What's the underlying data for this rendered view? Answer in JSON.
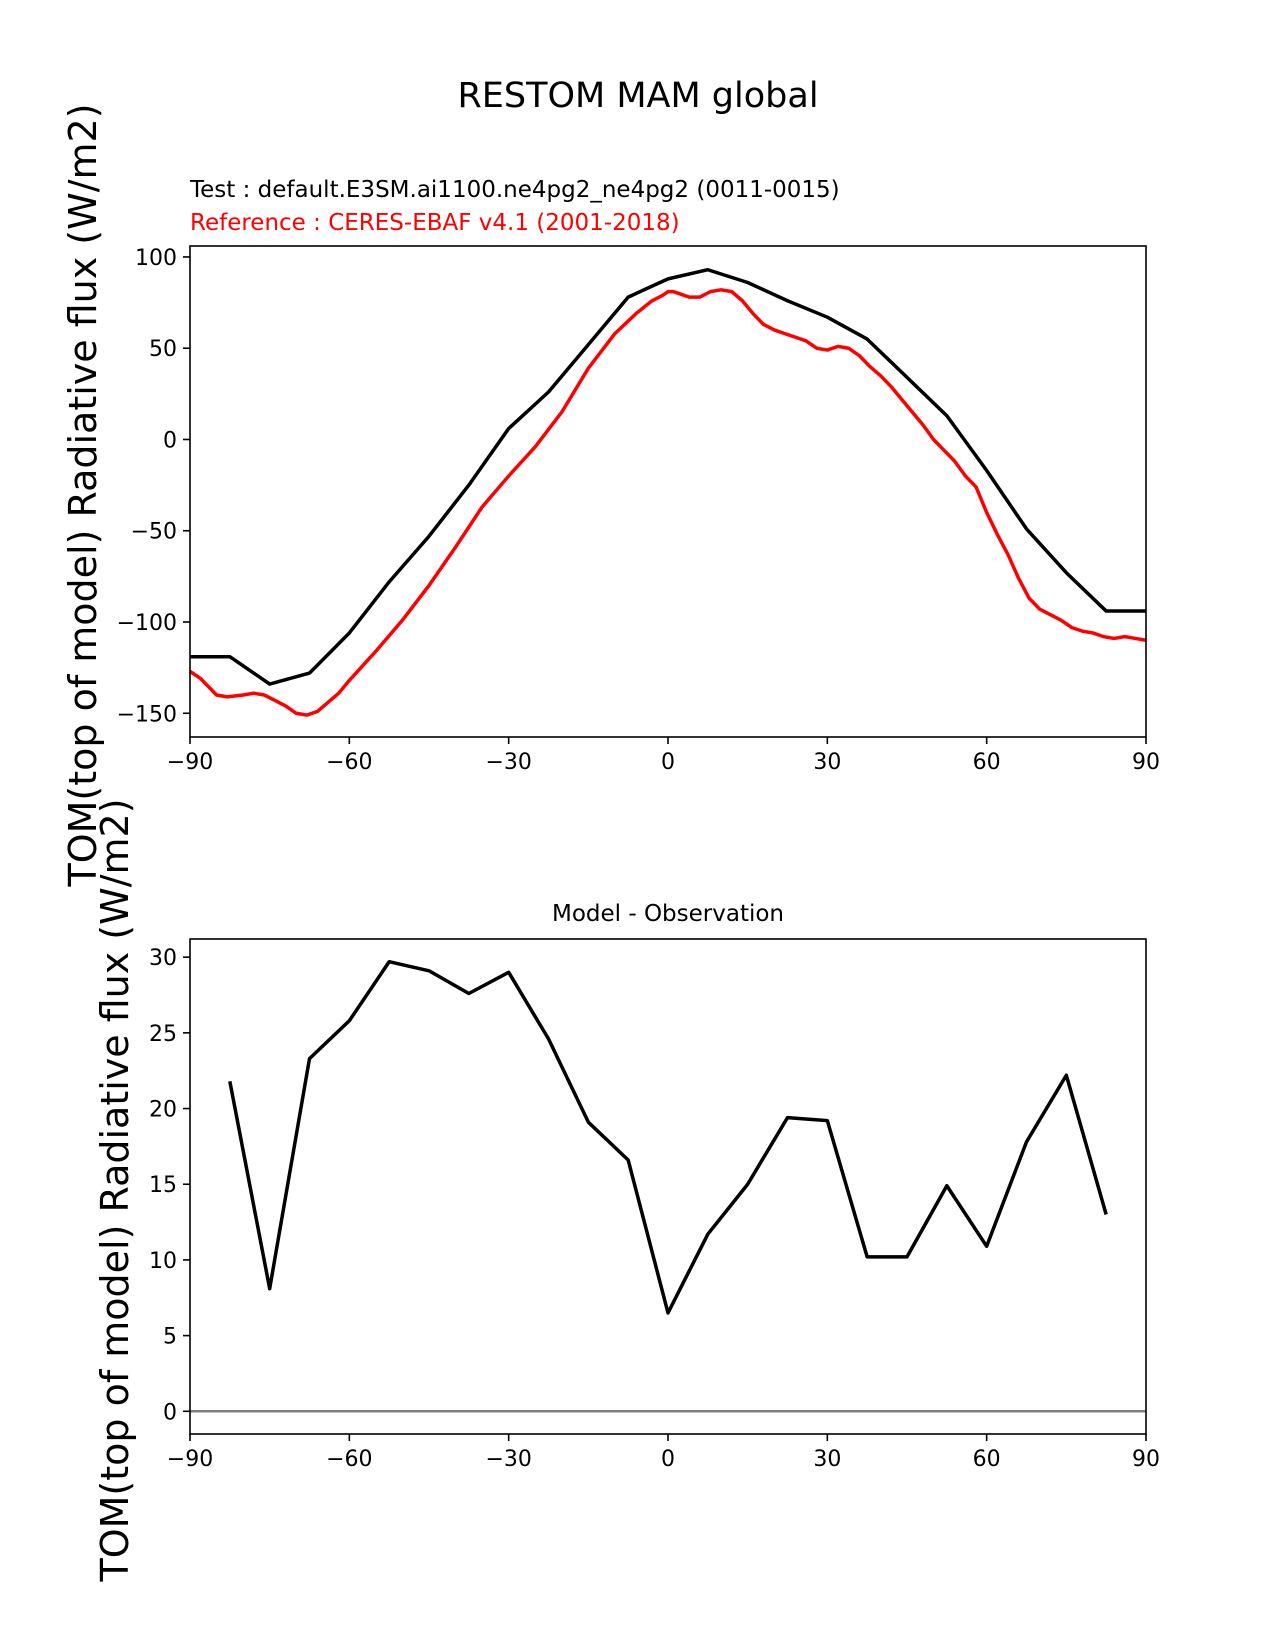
{
  "figure": {
    "title": "RESTOM MAM global",
    "test_label": "Test : default.E3SM.ai1100.ne4pg2_ne4pg2 (0011-0015)",
    "reference_label": "Reference : CERES-EBAF v4.1 (2001-2018)"
  },
  "colors": {
    "test": "#000000",
    "reference": "#ff0000",
    "zero_line": "#808080",
    "axes": "#000000",
    "background": "#ffffff"
  },
  "chart_data": [
    {
      "type": "line",
      "title": "",
      "xlabel": "",
      "ylabel": "TOM(top of model) Radiative flux (W/m2)",
      "xlim": [
        -90,
        90
      ],
      "ylim": [
        -163,
        106
      ],
      "xticks": [
        -90,
        -60,
        -30,
        0,
        30,
        60,
        90
      ],
      "yticks": [
        -150,
        -100,
        -50,
        0,
        50,
        100
      ],
      "grid": false,
      "series": [
        {
          "color_key": "test",
          "x": [
            -90,
            -82.5,
            -75,
            -67.5,
            -60,
            -52.5,
            -45,
            -37.5,
            -30,
            -22.5,
            -15,
            -7.5,
            0,
            7.5,
            15,
            22.5,
            30,
            37.5,
            45,
            52.5,
            60,
            67.5,
            75,
            82.5,
            90
          ],
          "y": [
            -119,
            -119,
            -134,
            -128,
            -106,
            -78,
            -53,
            -25,
            6,
            26,
            52,
            78,
            88,
            93,
            86,
            76,
            67,
            55,
            34,
            13,
            -17,
            -49,
            -73,
            -94,
            -94
          ]
        },
        {
          "color_key": "reference",
          "x": [
            -90,
            -88,
            -85,
            -83,
            -80,
            -78,
            -76,
            -74,
            -72,
            -70,
            -68,
            -66,
            -64,
            -62,
            -60,
            -55,
            -50,
            -45,
            -40,
            -35,
            -30,
            -25,
            -20,
            -15,
            -10,
            -6,
            -3,
            -1,
            0,
            1,
            2,
            4,
            6,
            8,
            10,
            12,
            14,
            16,
            18,
            20,
            22,
            24,
            26,
            28,
            30,
            32,
            34,
            36,
            38,
            40,
            42,
            44,
            46,
            48,
            50,
            52,
            54,
            56,
            58,
            60,
            62,
            64,
            66,
            68,
            70,
            72,
            74,
            76,
            78,
            80,
            82,
            84,
            86,
            88,
            90
          ],
          "y": [
            -127,
            -131,
            -140,
            -141,
            -140,
            -139,
            -140,
            -143,
            -146,
            -150,
            -151,
            -149,
            -144,
            -139,
            -132,
            -116,
            -99,
            -80,
            -59,
            -37,
            -20,
            -4,
            15,
            39,
            58,
            69,
            76,
            79,
            81,
            81,
            80,
            78,
            78,
            81,
            82,
            81,
            76,
            69,
            63,
            60,
            58,
            56,
            54,
            50,
            49,
            51,
            50,
            46,
            40,
            35,
            29,
            22,
            15,
            8,
            0,
            -6,
            -12,
            -20,
            -26,
            -40,
            -52,
            -63,
            -76,
            -87,
            -93,
            -96,
            -99,
            -103,
            -105,
            -106,
            -108,
            -109,
            -108,
            -109,
            -110
          ]
        }
      ]
    },
    {
      "type": "line",
      "title": "Model - Observation",
      "xlabel": "",
      "ylabel": "TOM(top of model) Radiative flux (W/m2)",
      "xlim": [
        -90,
        90
      ],
      "ylim": [
        -1.5,
        31.2
      ],
      "xticks": [
        -90,
        -60,
        -30,
        0,
        30,
        60,
        90
      ],
      "yticks": [
        0,
        5,
        10,
        15,
        20,
        25,
        30
      ],
      "grid": false,
      "zero_line": 0,
      "series": [
        {
          "color_key": "test",
          "x": [
            -82.5,
            -75,
            -67.5,
            -60,
            -52.5,
            -45,
            -37.5,
            -30,
            -22.5,
            -15,
            -7.5,
            0,
            7.5,
            15,
            22.5,
            30,
            37.5,
            45,
            52.5,
            60,
            67.5,
            75,
            82.5
          ],
          "y": [
            21.8,
            8.1,
            23.3,
            25.8,
            29.7,
            29.1,
            27.6,
            29.0,
            24.6,
            19.1,
            16.6,
            6.5,
            11.7,
            15.0,
            19.4,
            19.2,
            10.2,
            10.2,
            14.9,
            10.9,
            17.8,
            22.2,
            13.0
          ]
        }
      ]
    }
  ]
}
